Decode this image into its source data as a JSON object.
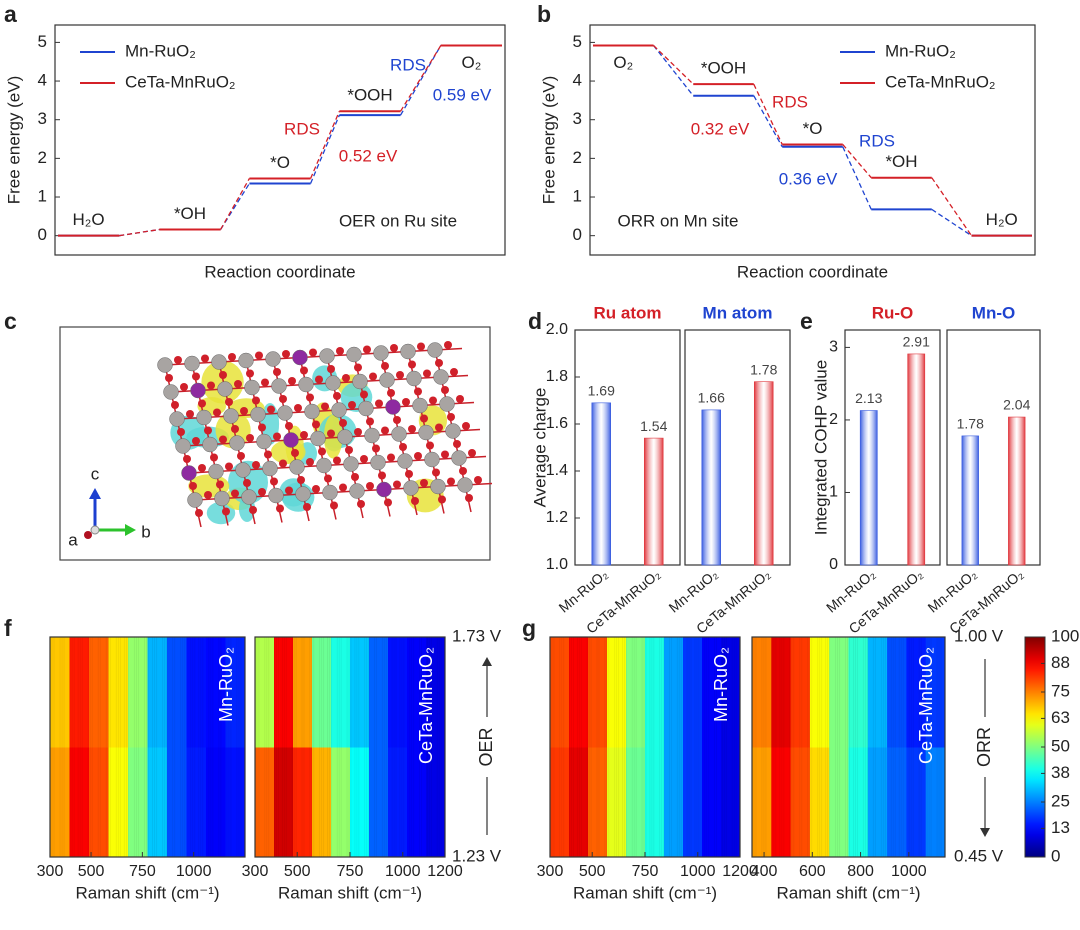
{
  "chart_data": [
    {
      "type": "energy",
      "label": "a",
      "ylabel": "Free energy (eV)",
      "xlabel": "Reaction coordinate",
      "states": [
        "H₂O",
        "*OH",
        "*O",
        "*OOH",
        "O₂"
      ],
      "series": [
        {
          "name": "Mn-RuO₂",
          "color": "#1f44d0",
          "values": [
            0,
            0.16,
            1.35,
            3.12,
            4.92
          ]
        },
        {
          "name": "CeTa-MnRuO₂",
          "color": "#d42027",
          "values": [
            0,
            0.16,
            1.48,
            3.22,
            4.92
          ]
        }
      ],
      "ylim": [
        -0.5,
        5.45
      ],
      "yticks": [
        0,
        1,
        2,
        3,
        4,
        5
      ],
      "legend": "upper left",
      "annotations": [
        {
          "text": "RDS",
          "color": "#d42027"
        },
        {
          "text": "0.52 eV",
          "color": "#d42027"
        },
        {
          "text": "RDS",
          "color": "#1f44d0"
        },
        {
          "text": "0.59 eV",
          "color": "#1f44d0"
        },
        {
          "text": "OER on Ru site",
          "color": "#222222"
        }
      ]
    },
    {
      "type": "energy",
      "label": "b",
      "ylabel": "Free energy (eV)",
      "xlabel": "Reaction coordinate",
      "states": [
        "O₂",
        "*OOH",
        "*O",
        "*OH",
        "H₂O"
      ],
      "series": [
        {
          "name": "Mn-RuO₂",
          "color": "#1f44d0",
          "values": [
            4.92,
            3.62,
            2.3,
            0.68,
            0
          ]
        },
        {
          "name": "CeTa-MnRuO₂",
          "color": "#d42027",
          "values": [
            4.92,
            3.92,
            2.36,
            1.5,
            0
          ]
        }
      ],
      "ylim": [
        -0.5,
        5.45
      ],
      "yticks": [
        0,
        1,
        2,
        3,
        4,
        5
      ],
      "legend": "upper right",
      "annotations": [
        {
          "text": "RDS",
          "color": "#d42027"
        },
        {
          "text": "0.32 eV",
          "color": "#d42027"
        },
        {
          "text": "RDS",
          "color": "#1f44d0"
        },
        {
          "text": "0.36 eV",
          "color": "#1f44d0"
        },
        {
          "text": "ORR on Mn site",
          "color": "#222222"
        }
      ]
    },
    {
      "type": "bar",
      "label": "d",
      "ylabel": "Average charge",
      "ylim": [
        1,
        2
      ],
      "yticks": [
        {
          "value": 1,
          "label": "1.0"
        },
        1.2,
        1.4,
        1.6,
        1.8,
        {
          "value": 2,
          "label": "2.0"
        }
      ],
      "subplots": [
        {
          "title": "Ru atom",
          "title_color": "#d42027",
          "categories": [
            "Mn-RuO₂",
            "CeTa-MnRuO₂"
          ],
          "values": [
            1.69,
            1.54
          ],
          "colors": [
            "#3a5de0",
            "#e0383e"
          ]
        },
        {
          "title": "Mn atom",
          "title_color": "#1f44d0",
          "categories": [
            "Mn-RuO₂",
            "CeTa-MnRuO₂"
          ],
          "values": [
            1.66,
            1.78
          ],
          "colors": [
            "#3a5de0",
            "#e0383e"
          ]
        }
      ]
    },
    {
      "type": "bar",
      "label": "e",
      "ylabel": "Integrated COHP value",
      "ylim": [
        0,
        3.24
      ],
      "yticks": [
        0,
        1,
        2,
        3
      ],
      "subplots": [
        {
          "title": "Ru-O",
          "title_color": "#d42027",
          "categories": [
            "Mn-RuO₂",
            "CeTa-MnRuO₂"
          ],
          "values": [
            2.13,
            2.91
          ],
          "colors": [
            "#3a5de0",
            "#e0383e"
          ]
        },
        {
          "title": "Mn-O",
          "title_color": "#1f44d0",
          "categories": [
            "Mn-RuO₂",
            "CeTa-MnRuO₂"
          ],
          "values": [
            1.78,
            2.04
          ],
          "colors": [
            "#3a5de0",
            "#e0383e"
          ]
        }
      ]
    },
    {
      "type": "heatmap",
      "label": "f",
      "direction_label": "OER",
      "ylim": [
        1.23,
        1.73
      ],
      "yticks": [
        {
          "value": 1.23,
          "label": "1.23 V"
        },
        {
          "value": 1.73,
          "label": "1.73 V"
        }
      ],
      "subplots": [
        {
          "name": "Mn-RuO₂",
          "xlabel": "Raman shift (cm⁻¹)",
          "xlim": [
            300,
            1250
          ],
          "xticks": [
            300,
            500,
            750,
            1000
          ],
          "x_bins": [
            300,
            395,
            490,
            585,
            680,
            775,
            870,
            965,
            1060,
            1155,
            1250
          ],
          "y_bins": [
            1.23,
            1.48,
            1.73
          ],
          "z": [
            [
              72,
              88,
              80,
              62,
              50,
              32,
              20,
              15,
              12,
              14
            ],
            [
              68,
              85,
              78,
              65,
              52,
              30,
              20,
              14,
              13,
              16
            ]
          ]
        },
        {
          "name": "CeTa-MnRuO₂",
          "xlabel": "Raman shift (cm⁻¹)",
          "xlim": [
            300,
            1200
          ],
          "xticks": [
            300,
            500,
            750,
            1000,
            1200
          ],
          "x_bins": [
            300,
            390,
            480,
            570,
            660,
            750,
            840,
            930,
            1020,
            1110,
            1200
          ],
          "y_bins": [
            1.23,
            1.48,
            1.73
          ],
          "z": [
            [
              78,
              92,
              84,
              70,
              52,
              38,
              22,
              15,
              12,
              10
            ],
            [
              55,
              88,
              72,
              48,
              40,
              32,
              22,
              14,
              12,
              10
            ]
          ]
        }
      ]
    },
    {
      "type": "heatmap",
      "label": "g",
      "direction_label": "ORR",
      "ylim": [
        0.45,
        1
      ],
      "yticks": [
        {
          "value": 0.45,
          "label": "0.45 V"
        },
        {
          "value": 1,
          "label": "1.00 V"
        }
      ],
      "subplots": [
        {
          "name": "Mn-RuO₂",
          "xlabel": "Raman shift (cm⁻¹)",
          "xlim": [
            300,
            1200
          ],
          "xticks": [
            300,
            500,
            750,
            1000,
            1200
          ],
          "x_bins": [
            300,
            390,
            480,
            570,
            660,
            750,
            840,
            930,
            1020,
            1110,
            1200
          ],
          "y_bins": [
            0.45,
            0.725,
            1
          ],
          "z": [
            [
              82,
              90,
              78,
              60,
              48,
              40,
              28,
              18,
              12,
              10
            ],
            [
              80,
              88,
              80,
              62,
              50,
              40,
              28,
              18,
              12,
              10
            ]
          ]
        },
        {
          "name": "CeTa-MnRuO₂",
          "xlabel": "Raman shift (cm⁻¹)",
          "xlim": [
            350,
            1150
          ],
          "xticks": [
            400,
            600,
            800,
            1000
          ],
          "x_bins": [
            350,
            430,
            510,
            590,
            670,
            750,
            830,
            910,
            990,
            1070,
            1150
          ],
          "y_bins": [
            0.45,
            0.725,
            1
          ],
          "z": [
            [
              72,
              88,
              80,
              66,
              50,
              40,
              28,
              22,
              18,
              25
            ],
            [
              75,
              90,
              82,
              62,
              50,
              42,
              30,
              20,
              15,
              18
            ]
          ]
        }
      ]
    },
    {
      "type": "colorbar",
      "colormap": "jet",
      "zlim": [
        0,
        100
      ],
      "ticks": [
        0,
        13,
        25,
        38,
        50,
        63,
        75,
        88,
        100
      ]
    }
  ],
  "structure": {
    "label": "c",
    "axes": [
      "c",
      "a",
      "b"
    ]
  }
}
